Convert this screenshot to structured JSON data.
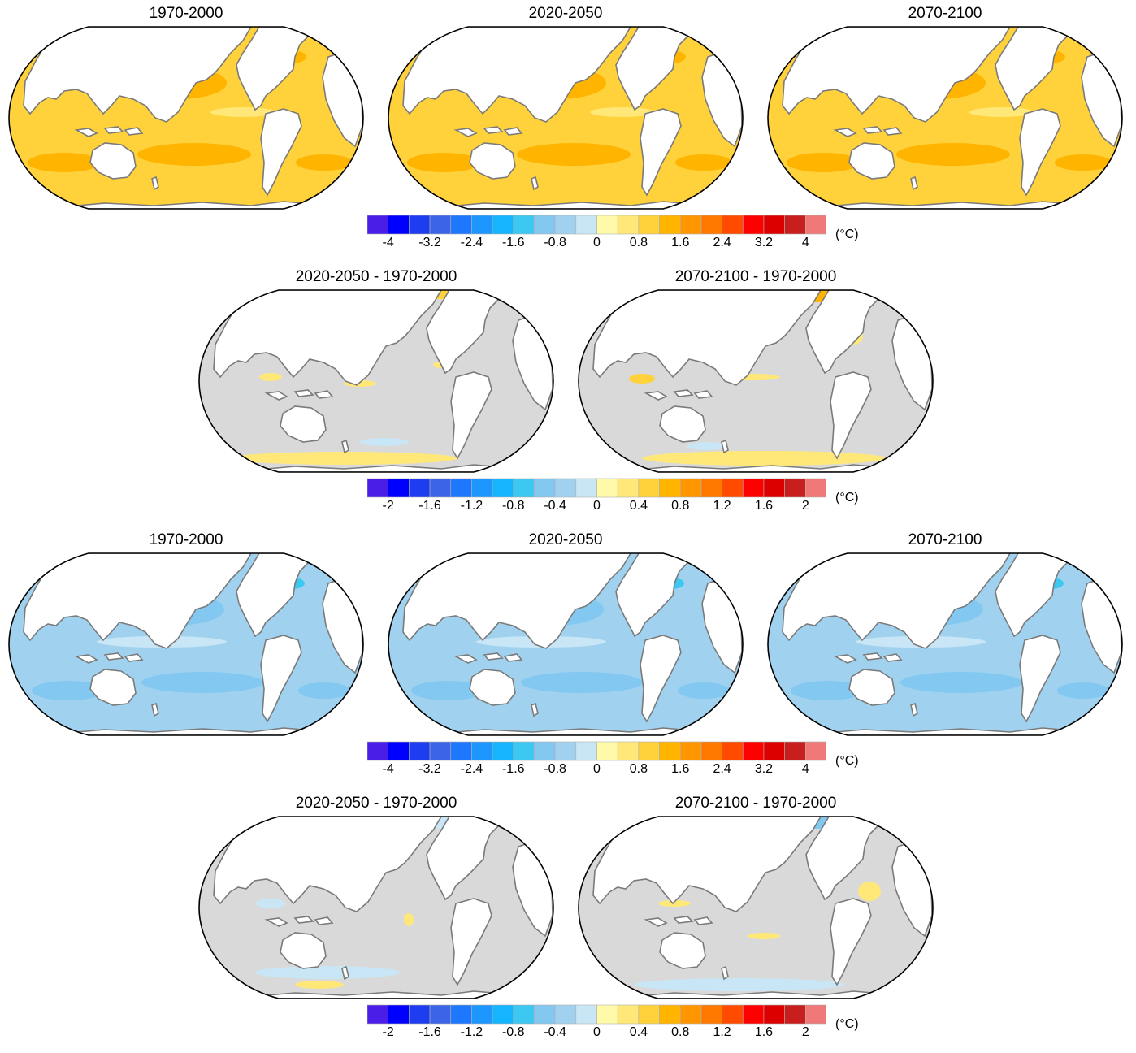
{
  "rows": [
    {
      "panels": [
        {
          "title": "1970-2000",
          "field": "warm"
        },
        {
          "title": "2020-2050",
          "field": "warm"
        },
        {
          "title": "2070-2100",
          "field": "warm"
        }
      ]
    },
    {
      "panels": [
        {
          "title": "2020-2050 - 1970-2000",
          "field": "diff-warm-a"
        },
        {
          "title": "2070-2100 - 1970-2000",
          "field": "diff-warm-b"
        }
      ]
    },
    {
      "panels": [
        {
          "title": "1970-2000",
          "field": "cool"
        },
        {
          "title": "2020-2050",
          "field": "cool"
        },
        {
          "title": "2070-2100",
          "field": "cool"
        }
      ]
    },
    {
      "panels": [
        {
          "title": "2020-2050 - 1970-2000",
          "field": "diff-cool-a"
        },
        {
          "title": "2070-2100 - 1970-2000",
          "field": "diff-cool-b"
        }
      ]
    }
  ],
  "colorbars": [
    {
      "ticks": [
        "-4",
        "-3.2",
        "-2.4",
        "-1.6",
        "-0.8",
        "0",
        "0.8",
        "1.6",
        "2.4",
        "3.2",
        "4"
      ],
      "unit": "(°C)"
    },
    {
      "ticks": [
        "-2",
        "-1.6",
        "-1.2",
        "-0.8",
        "-0.4",
        "0",
        "0.4",
        "0.8",
        "1.2",
        "1.6",
        "2"
      ],
      "unit": "(°C)"
    },
    {
      "ticks": [
        "-4",
        "-3.2",
        "-2.4",
        "-1.6",
        "-0.8",
        "0",
        "0.8",
        "1.6",
        "2.4",
        "3.2",
        "4"
      ],
      "unit": "(°C)"
    },
    {
      "ticks": [
        "-2",
        "-1.6",
        "-1.2",
        "-0.8",
        "-0.4",
        "0",
        "0.4",
        "0.8",
        "1.2",
        "1.6",
        "2"
      ],
      "unit": "(°C)"
    }
  ],
  "palette": [
    "#4b1ee8",
    "#0000ff",
    "#1e3cf0",
    "#3c64e6",
    "#1e78ff",
    "#1e96ff",
    "#14b4ff",
    "#3cc8f0",
    "#82c8f0",
    "#a0d2f0",
    "#c8e6f5",
    "#fffaaa",
    "#ffe878",
    "#ffd23c",
    "#ffb400",
    "#ff9600",
    "#ff7800",
    "#ff4b00",
    "#ff0000",
    "#dc0000",
    "#c81e1e",
    "#f07878"
  ],
  "colors": {
    "land": "#ffffff",
    "coast": "#7a7a7a",
    "warm_base": "#ffd23c",
    "warm_light": "#ffe878",
    "warm_mid": "#ffb400",
    "warm_hot": "#ff7800",
    "cool_base": "#a0d2f0",
    "cool_light": "#c8e6f5",
    "cool_mid": "#82c8f0",
    "cool_deep": "#3cc8f0",
    "diff_base": "#d9d9d9"
  }
}
